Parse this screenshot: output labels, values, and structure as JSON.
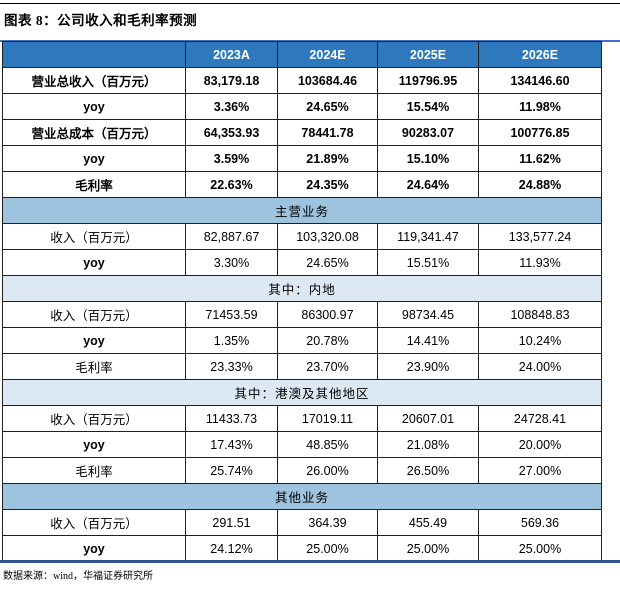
{
  "page": {
    "title": "图表 8：公司收入和毛利率预测",
    "footer": "数据来源：wind，华福证券研究所"
  },
  "colors": {
    "header_bg": "#2E79BE",
    "header_text": "#FFFFFF",
    "band_medium": "#9DC3DF",
    "band_light": "#DCE9F4",
    "top_rule": "#4472C4",
    "bottom_rule": "#2F5496",
    "grid_line": "#1F1F1F"
  },
  "table": {
    "columns": [
      "",
      "2023A",
      "2024E",
      "2025E",
      "2026E"
    ],
    "rows": [
      {
        "type": "data",
        "bold": true,
        "label": "营业总收入（百万元）",
        "values": [
          "83,179.18",
          "103684.46",
          "119796.95",
          "134146.60"
        ]
      },
      {
        "type": "data",
        "bold": true,
        "label": "yoy",
        "values": [
          "3.36%",
          "24.65%",
          "15.54%",
          "11.98%"
        ]
      },
      {
        "type": "data",
        "bold": true,
        "label": "营业总成本（百万元）",
        "values": [
          "64,353.93",
          "78441.78",
          "90283.07",
          "100776.85"
        ]
      },
      {
        "type": "data",
        "bold": true,
        "label": "yoy",
        "values": [
          "3.59%",
          "21.89%",
          "15.10%",
          "11.62%"
        ]
      },
      {
        "type": "data",
        "bold": true,
        "label": "毛利率",
        "values": [
          "22.63%",
          "24.35%",
          "24.64%",
          "24.88%"
        ]
      },
      {
        "type": "band",
        "style": "medium",
        "label": "主营业务"
      },
      {
        "type": "data",
        "bold": false,
        "label": "收入（百万元）",
        "values": [
          "82,887.67",
          "103,320.08",
          "119,341.47",
          "133,577.24"
        ]
      },
      {
        "type": "data",
        "bold": false,
        "label": "yoy",
        "values": [
          "3.30%",
          "24.65%",
          "15.51%",
          "11.93%"
        ]
      },
      {
        "type": "band",
        "style": "light",
        "label": "其中：内地"
      },
      {
        "type": "data",
        "bold": false,
        "label": "收入（百万元）",
        "values": [
          "71453.59",
          "86300.97",
          "98734.45",
          "108848.83"
        ]
      },
      {
        "type": "data",
        "bold": false,
        "label": "yoy",
        "values": [
          "1.35%",
          "20.78%",
          "14.41%",
          "10.24%"
        ]
      },
      {
        "type": "data",
        "bold": false,
        "label": "毛利率",
        "values": [
          "23.33%",
          "23.70%",
          "23.90%",
          "24.00%"
        ]
      },
      {
        "type": "band",
        "style": "light",
        "label": "其中：港澳及其他地区"
      },
      {
        "type": "data",
        "bold": false,
        "label": "收入（百万元）",
        "values": [
          "11433.73",
          "17019.11",
          "20607.01",
          "24728.41"
        ]
      },
      {
        "type": "data",
        "bold": false,
        "label": "yoy",
        "values": [
          "17.43%",
          "48.85%",
          "21.08%",
          "20.00%"
        ]
      },
      {
        "type": "data",
        "bold": false,
        "label": "毛利率",
        "values": [
          "25.74%",
          "26.00%",
          "26.50%",
          "27.00%"
        ]
      },
      {
        "type": "band",
        "style": "medium",
        "label": "其他业务"
      },
      {
        "type": "data",
        "bold": false,
        "label": "收入（百万元）",
        "values": [
          "291.51",
          "364.39",
          "455.49",
          "569.36"
        ]
      },
      {
        "type": "data",
        "bold": false,
        "label": "yoy",
        "values": [
          "24.12%",
          "25.00%",
          "25.00%",
          "25.00%"
        ]
      }
    ]
  }
}
